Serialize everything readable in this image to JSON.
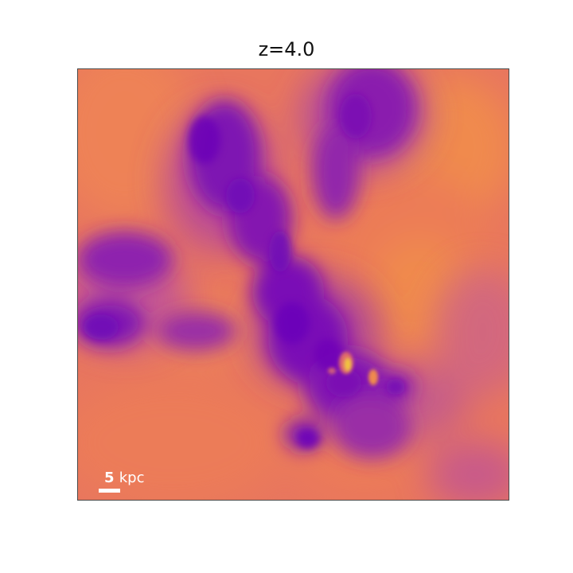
{
  "figure": {
    "title": "z=4.0",
    "scalebar": {
      "value": "5",
      "unit": "kpc"
    },
    "colormap": "plasma",
    "colors": {
      "background": "#e8765e",
      "warm": "#ef8a50",
      "mid": "#b0429a",
      "dark": "#7a0fb6",
      "hot": "#f3c63a"
    }
  }
}
